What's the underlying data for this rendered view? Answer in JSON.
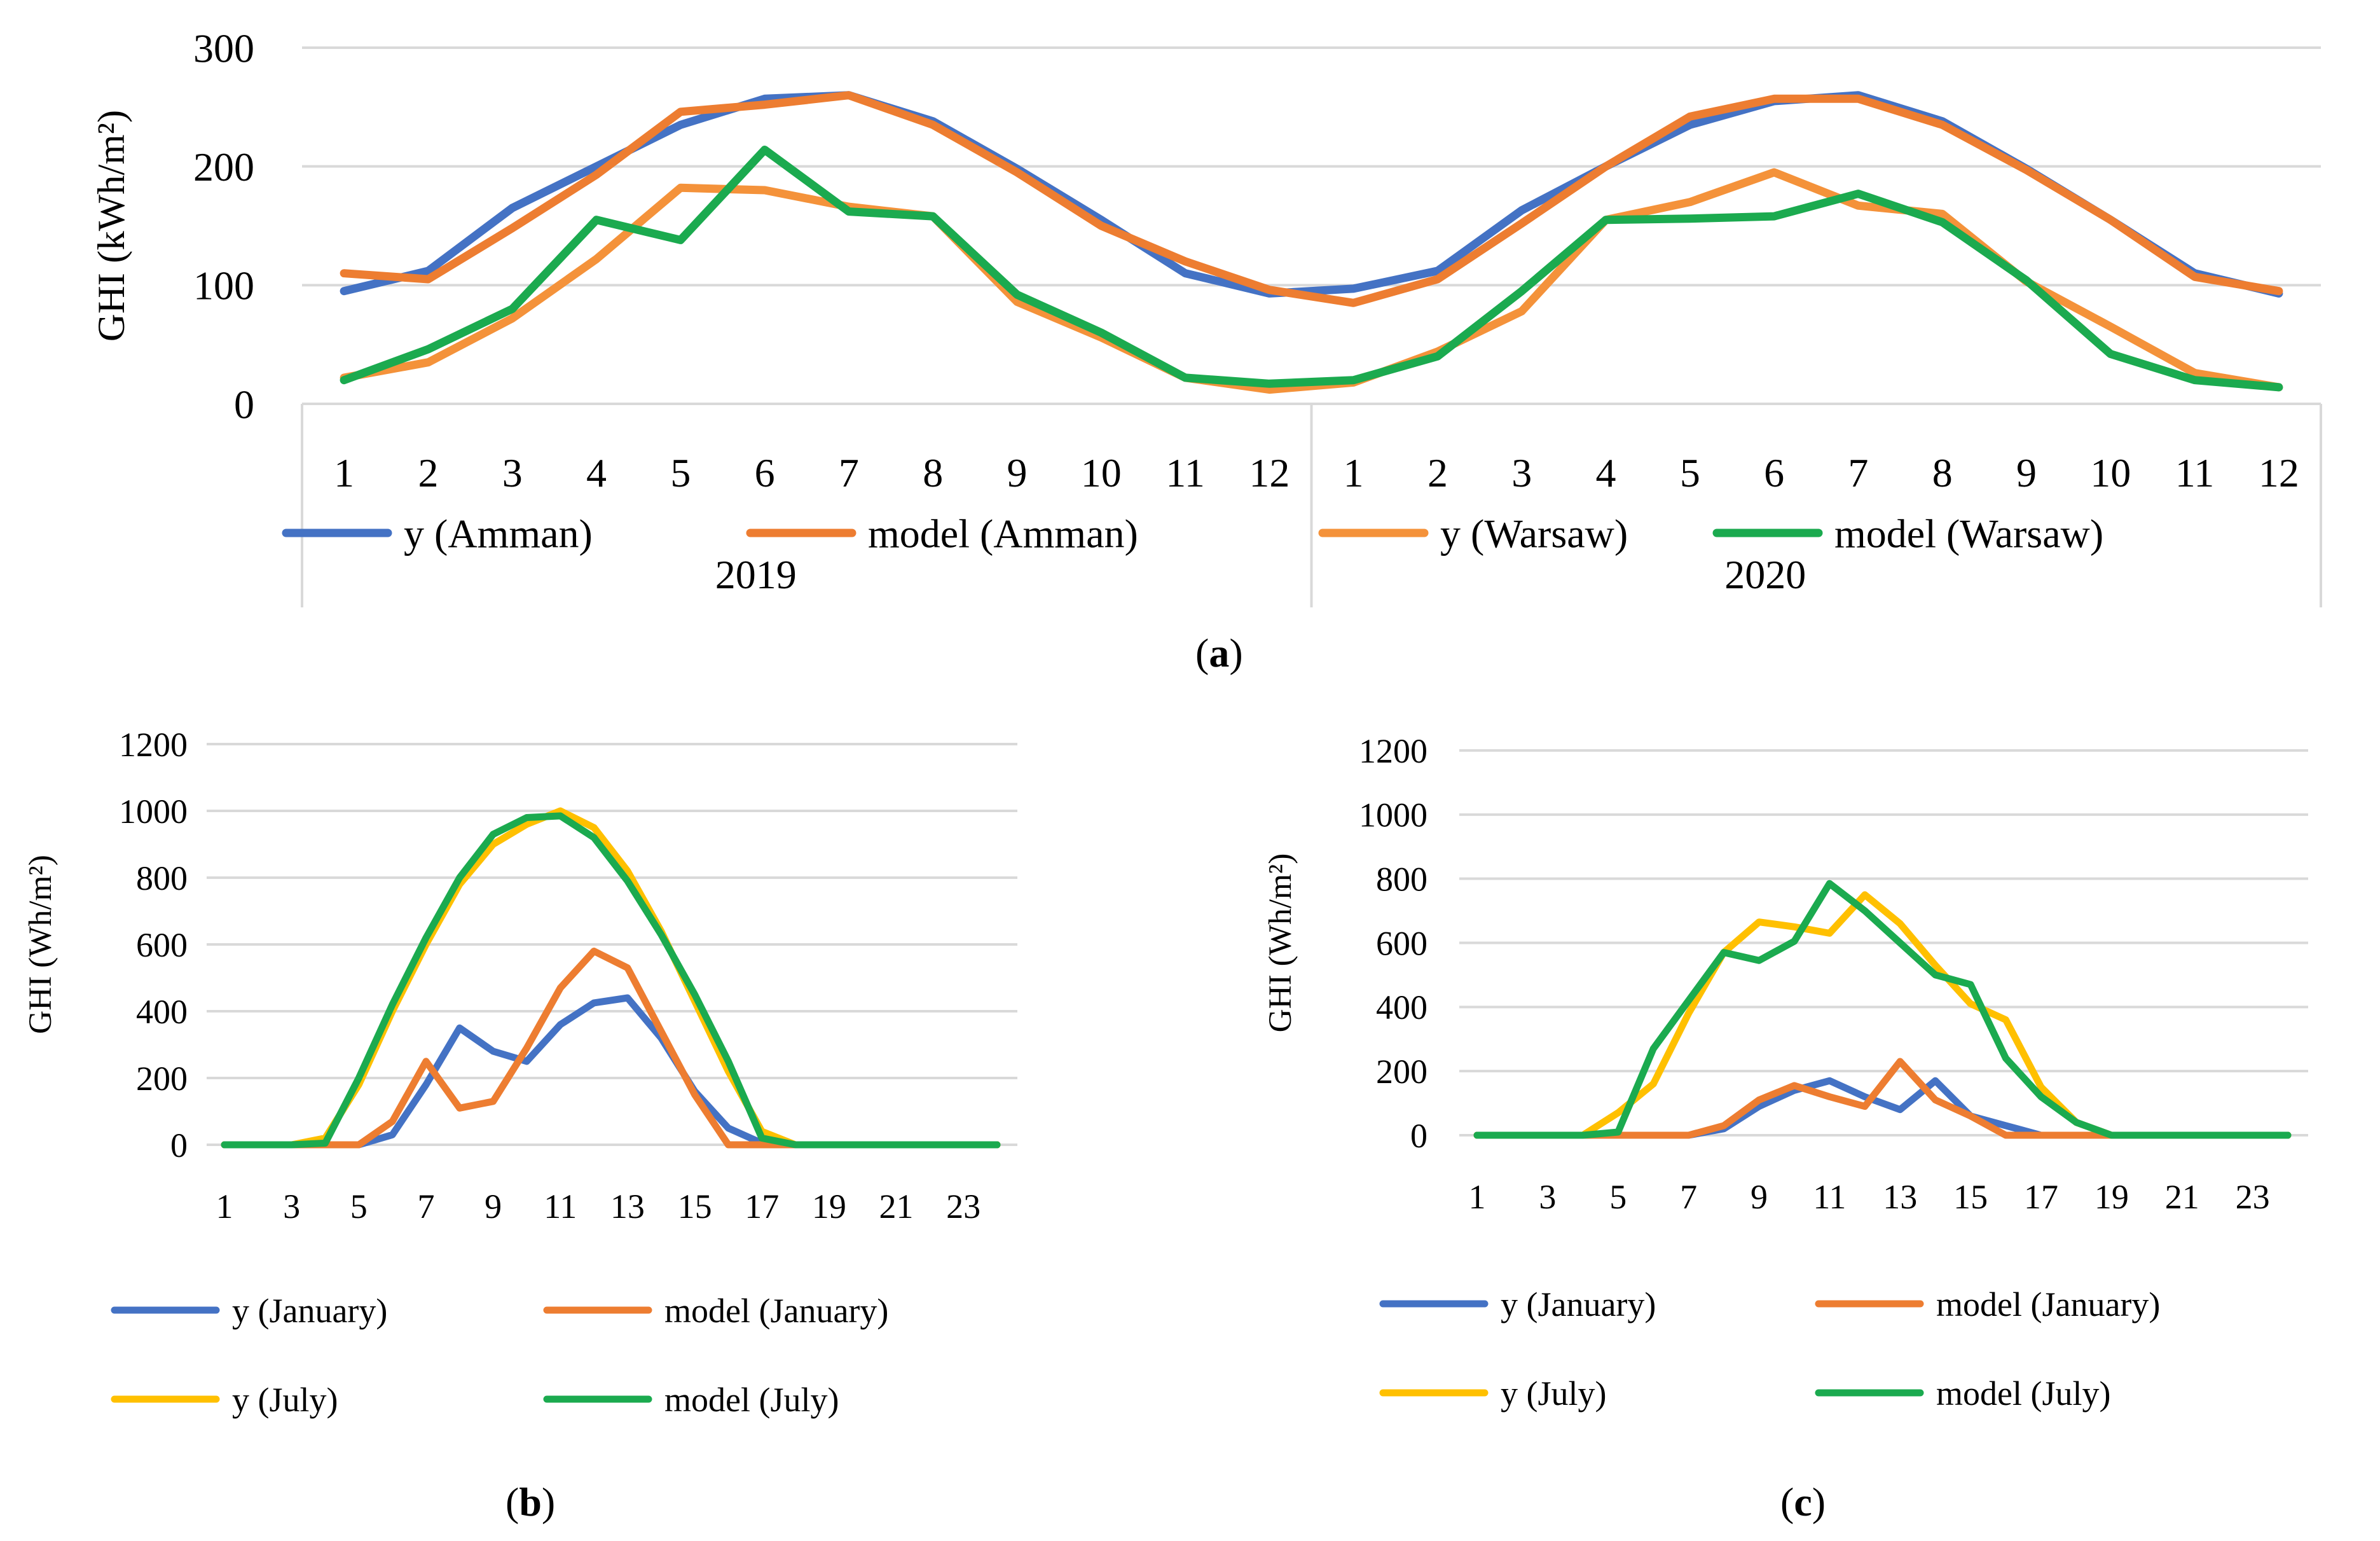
{
  "captions": {
    "a": "a",
    "b": "b",
    "c": "c"
  },
  "chart_data": [
    {
      "id": "a",
      "type": "line",
      "ylabel": "GHI (kWh/m²)",
      "ylim": [
        0,
        300
      ],
      "yticks": [
        0,
        100,
        200,
        300
      ],
      "grid": true,
      "legend_position": "inside-bottom",
      "categories": [
        "1",
        "2",
        "3",
        "4",
        "5",
        "6",
        "7",
        "8",
        "9",
        "10",
        "11",
        "12",
        "1",
        "2",
        "3",
        "4",
        "5",
        "6",
        "7",
        "8",
        "9",
        "10",
        "11",
        "12"
      ],
      "groups": [
        {
          "label": "2019",
          "size": 12
        },
        {
          "label": "2020",
          "size": 12
        }
      ],
      "series": [
        {
          "name": "y (Amman)",
          "color": "#4472C4",
          "values": [
            95,
            112,
            165,
            200,
            235,
            257,
            260,
            238,
            198,
            155,
            110,
            93,
            97,
            112,
            163,
            200,
            235,
            255,
            260,
            238,
            198,
            155,
            110,
            93
          ]
        },
        {
          "name": "model (Amman)",
          "color": "#ED7D31",
          "values": [
            110,
            105,
            148,
            193,
            246,
            252,
            260,
            235,
            195,
            150,
            120,
            96,
            85,
            105,
            152,
            200,
            242,
            257,
            257,
            235,
            197,
            155,
            107,
            95
          ]
        },
        {
          "name": "y (Warsaw)",
          "color": "#F4923A",
          "values": [
            22,
            35,
            72,
            122,
            182,
            180,
            166,
            158,
            86,
            56,
            22,
            12,
            18,
            44,
            78,
            155,
            170,
            195,
            167,
            160,
            103,
            65,
            26,
            14
          ]
        },
        {
          "name": "model (Warsaw)",
          "color": "#1BAA4F",
          "values": [
            20,
            46,
            80,
            155,
            138,
            214,
            162,
            158,
            92,
            60,
            22,
            17,
            20,
            40,
            95,
            155,
            156,
            158,
            177,
            153,
            104,
            42,
            20,
            14
          ]
        }
      ]
    },
    {
      "id": "b",
      "type": "line",
      "ylabel": "GHI (Wh/m²)",
      "ylim": [
        0,
        1200
      ],
      "yticks": [
        0,
        200,
        400,
        600,
        800,
        1000,
        1200
      ],
      "grid": true,
      "legend_position": "bottom",
      "x": [
        1,
        2,
        3,
        4,
        5,
        6,
        7,
        8,
        9,
        10,
        11,
        12,
        13,
        14,
        15,
        16,
        17,
        18,
        19,
        20,
        21,
        22,
        23,
        24
      ],
      "xtick_labels": [
        "1",
        "3",
        "5",
        "7",
        "9",
        "11",
        "13",
        "15",
        "17",
        "19",
        "21",
        "23"
      ],
      "series": [
        {
          "name": "y (January)",
          "color": "#4472C4",
          "values": [
            0,
            0,
            0,
            0,
            0,
            30,
            180,
            350,
            280,
            250,
            360,
            425,
            440,
            320,
            160,
            50,
            5,
            0,
            0,
            0,
            0,
            0,
            0,
            0
          ]
        },
        {
          "name": "model (January)",
          "color": "#ED7D31",
          "values": [
            0,
            0,
            0,
            0,
            0,
            70,
            250,
            110,
            130,
            290,
            470,
            580,
            530,
            340,
            150,
            0,
            0,
            0,
            0,
            0,
            0,
            0,
            0,
            0
          ]
        },
        {
          "name": "y (July)",
          "color": "#FFC000",
          "values": [
            0,
            0,
            0,
            20,
            180,
            400,
            600,
            780,
            900,
            960,
            1000,
            950,
            820,
            640,
            430,
            220,
            40,
            0,
            0,
            0,
            0,
            0,
            0,
            0
          ]
        },
        {
          "name": "model (July)",
          "color": "#1BAA4F",
          "values": [
            0,
            0,
            0,
            5,
            200,
            420,
            620,
            800,
            930,
            980,
            985,
            920,
            790,
            630,
            450,
            250,
            20,
            0,
            0,
            0,
            0,
            0,
            0,
            0
          ]
        }
      ]
    },
    {
      "id": "c",
      "type": "line",
      "ylabel": "GHI (Wh/m²)",
      "ylim": [
        0,
        1200
      ],
      "yticks": [
        0,
        200,
        400,
        600,
        800,
        1000,
        1200
      ],
      "grid": true,
      "legend_position": "bottom",
      "x": [
        1,
        2,
        3,
        4,
        5,
        6,
        7,
        8,
        9,
        10,
        11,
        12,
        13,
        14,
        15,
        16,
        17,
        18,
        19,
        20,
        21,
        22,
        23,
        24
      ],
      "xtick_labels": [
        "1",
        "3",
        "5",
        "7",
        "9",
        "11",
        "13",
        "15",
        "17",
        "19",
        "21",
        "23"
      ],
      "series": [
        {
          "name": "y (January)",
          "color": "#4472C4",
          "values": [
            0,
            0,
            0,
            0,
            0,
            0,
            0,
            20,
            90,
            140,
            170,
            120,
            80,
            170,
            60,
            30,
            0,
            0,
            0,
            0,
            0,
            0,
            0,
            0
          ]
        },
        {
          "name": "model (January)",
          "color": "#ED7D31",
          "values": [
            0,
            0,
            0,
            0,
            0,
            0,
            0,
            30,
            110,
            155,
            120,
            90,
            230,
            110,
            60,
            0,
            0,
            0,
            0,
            0,
            0,
            0,
            0,
            0
          ]
        },
        {
          "name": "y (July)",
          "color": "#FFC000",
          "values": [
            0,
            0,
            0,
            0,
            70,
            160,
            380,
            570,
            665,
            650,
            630,
            750,
            660,
            530,
            410,
            360,
            150,
            40,
            0,
            0,
            0,
            0,
            0,
            0
          ]
        },
        {
          "name": "model (July)",
          "color": "#1BAA4F",
          "values": [
            0,
            0,
            0,
            0,
            10,
            270,
            420,
            570,
            545,
            605,
            785,
            700,
            600,
            500,
            470,
            240,
            120,
            40,
            0,
            0,
            0,
            0,
            0,
            0
          ]
        }
      ]
    }
  ]
}
